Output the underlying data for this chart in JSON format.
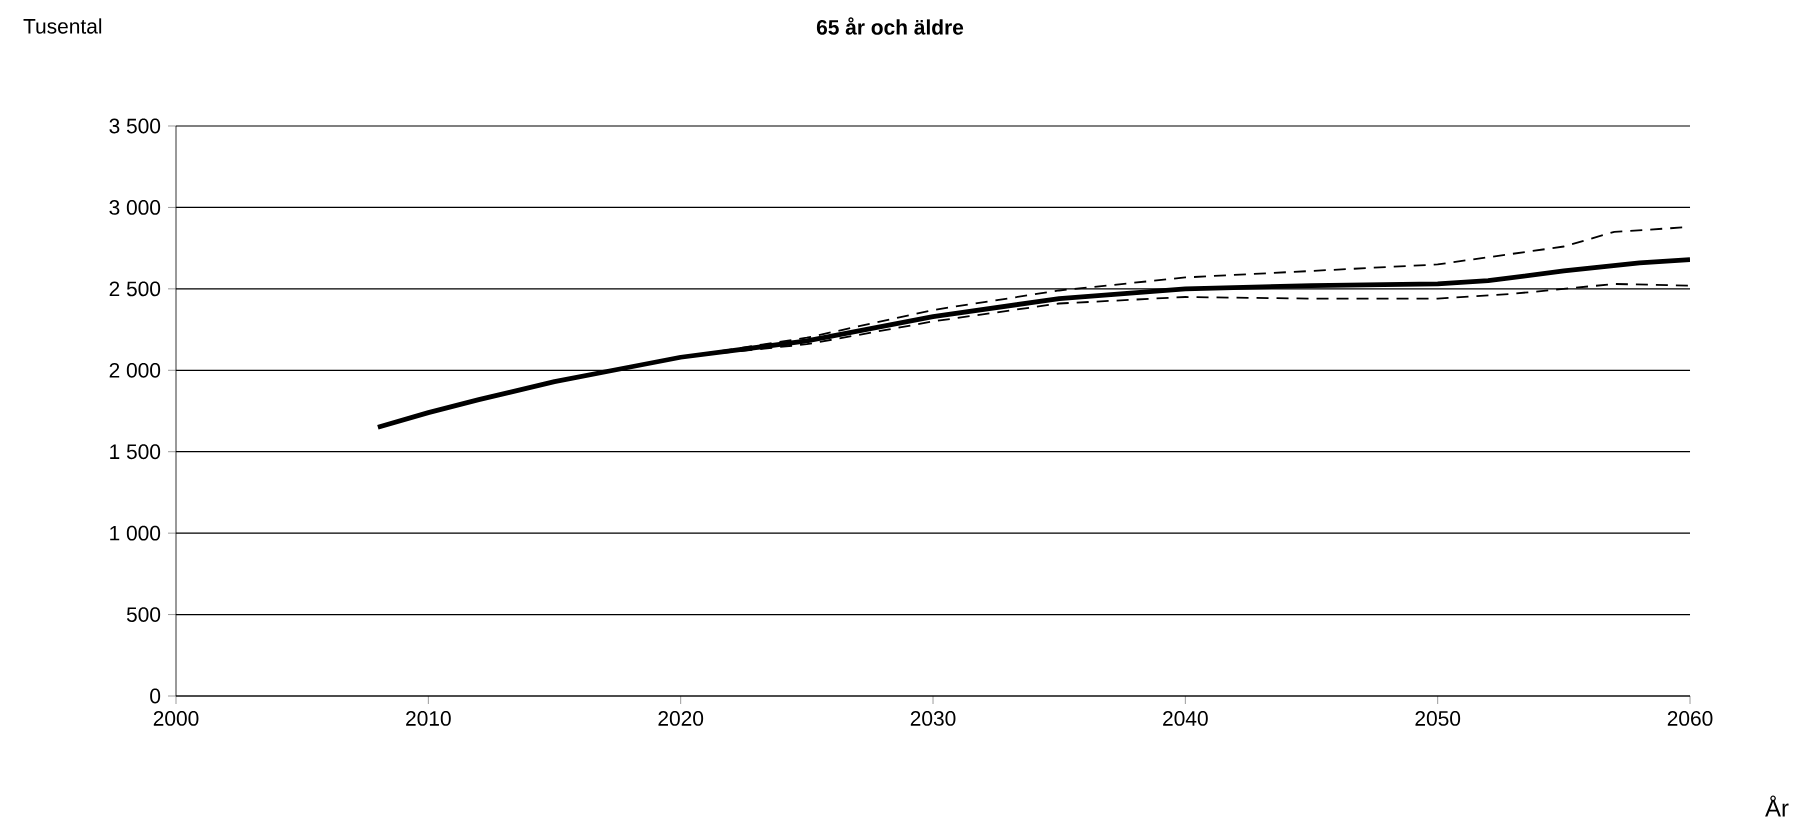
{
  "chart_data": {
    "type": "line",
    "title": "65 år och äldre",
    "xlabel": "År",
    "ylabel": "Tusental",
    "xlim": [
      2000,
      2060
    ],
    "xticks": [
      2000,
      2010,
      2020,
      2030,
      2040,
      2050,
      2060
    ],
    "ylim": [
      0,
      3500
    ],
    "yticks": [
      0,
      500,
      {
        "value": 1000,
        "label": "1 000"
      },
      {
        "value": 1500,
        "label": "1 500"
      },
      {
        "value": 2000,
        "label": "2 000"
      },
      {
        "value": 2500,
        "label": "2 500"
      },
      {
        "value": 3000,
        "label": "3 000"
      },
      {
        "value": 3500,
        "label": "3 500"
      }
    ],
    "grid": "y",
    "series": [
      {
        "color": "#000000",
        "line_style": "solid",
        "x": [
          2008,
          2010,
          2012,
          2015,
          2018,
          2020,
          2025,
          2030,
          2035,
          2040,
          2045,
          2050,
          2052,
          2055,
          2058,
          2060
        ],
        "values": [
          1650,
          1740,
          1820,
          1930,
          2020,
          2080,
          2180,
          2330,
          2440,
          2500,
          2520,
          2530,
          2550,
          2610,
          2660,
          2680
        ]
      },
      {
        "color": "#000000",
        "line_style": "dashed",
        "x": [
          2020,
          2025,
          2030,
          2035,
          2040,
          2045,
          2050,
          2055,
          2057,
          2060
        ],
        "values": [
          2080,
          2200,
          2370,
          2490,
          2570,
          2610,
          2650,
          2760,
          2850,
          2880
        ]
      },
      {
        "color": "#000000",
        "line_style": "dashed",
        "x": [
          2020,
          2025,
          2030,
          2035,
          2040,
          2045,
          2050,
          2053,
          2057,
          2060
        ],
        "values": [
          2080,
          2160,
          2300,
          2410,
          2450,
          2440,
          2440,
          2470,
          2530,
          2520
        ]
      }
    ]
  }
}
